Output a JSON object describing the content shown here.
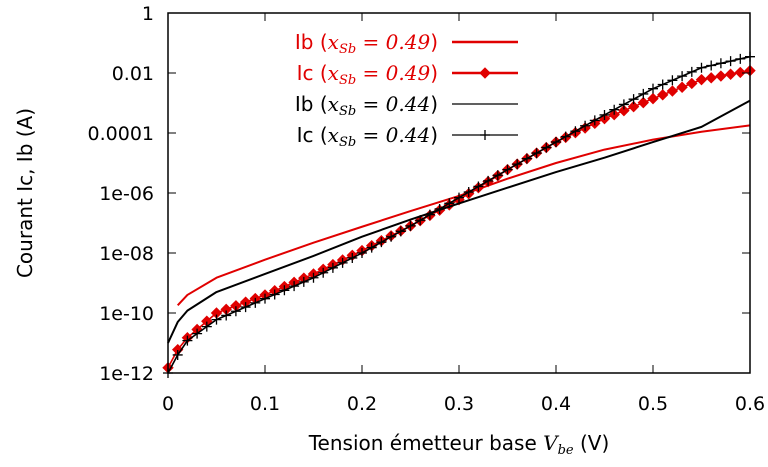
{
  "chart_data": {
    "type": "line",
    "title": "",
    "xlabel": {
      "text": "Tension émetteur base ",
      "var": "V",
      "sub": "be",
      "unit": " (V)"
    },
    "ylabel": "Courant Ic, Ib (A)",
    "xlim": [
      0,
      0.6
    ],
    "ylim": [
      1e-12,
      1
    ],
    "yscale": "log",
    "grid": false,
    "legend_position": "top-left-inside",
    "x_ticks": [
      0,
      0.1,
      0.2,
      0.3,
      0.4,
      0.5,
      0.6
    ],
    "x_tick_labels": [
      "0",
      "0.1",
      "0.2",
      "0.3",
      "0.4",
      "0.5",
      "0.6"
    ],
    "y_ticks": [
      1e-12,
      1e-10,
      1e-08,
      1e-06,
      0.0001,
      0.01,
      1
    ],
    "y_tick_labels": [
      "1e-12",
      "1e-10",
      "1e-08",
      "1e-06",
      "0.0001",
      "0.01",
      "1"
    ],
    "series": [
      {
        "name": "Ib",
        "param": "x",
        "param_sub": "Sb",
        "param_val": " = 0.49",
        "color": "#e00000",
        "marker": "none",
        "x": [
          0.01,
          0.02,
          0.05,
          0.1,
          0.15,
          0.2,
          0.25,
          0.3,
          0.35,
          0.4,
          0.45,
          0.5,
          0.55,
          0.6
        ],
        "y": [
          1.8e-10,
          4e-10,
          1.5e-09,
          6e-09,
          2.2e-08,
          7.5e-08,
          2.5e-07,
          8e-07,
          3e-06,
          1e-05,
          2.8e-05,
          6e-05,
          0.00011,
          0.00018
        ]
      },
      {
        "name": "Ic",
        "param": "x",
        "param_sub": "Sb",
        "param_val": " = 0.49",
        "color": "#e00000",
        "marker": "diamond",
        "x": [
          0.0,
          0.01,
          0.02,
          0.05,
          0.1,
          0.15,
          0.2,
          0.25,
          0.3,
          0.35,
          0.4,
          0.45,
          0.5,
          0.55,
          0.6
        ],
        "y": [
          1.5e-12,
          6e-12,
          1.5e-11,
          1e-10,
          4e-10,
          2e-09,
          1.2e-08,
          8e-08,
          6e-07,
          6e-06,
          5e-05,
          0.0003,
          0.0014,
          0.006,
          0.012
        ]
      },
      {
        "name": "Ib",
        "param": "x",
        "param_sub": "Sb",
        "param_val": " = 0.44",
        "color": "#000000",
        "marker": "none",
        "x": [
          0.0,
          0.01,
          0.02,
          0.05,
          0.1,
          0.15,
          0.2,
          0.25,
          0.3,
          0.35,
          0.4,
          0.45,
          0.5,
          0.55,
          0.6
        ],
        "y": [
          1e-11,
          5e-11,
          1.2e-10,
          5e-10,
          2e-09,
          8e-09,
          3.5e-08,
          1.3e-07,
          4.5e-07,
          1.5e-06,
          5e-06,
          1.5e-05,
          5e-05,
          0.00016,
          0.0012
        ]
      },
      {
        "name": "Ic",
        "param": "x",
        "param_sub": "Sb",
        "param_val": " = 0.44",
        "color": "#000000",
        "marker": "plus",
        "x": [
          0.0,
          0.01,
          0.02,
          0.05,
          0.1,
          0.15,
          0.2,
          0.25,
          0.3,
          0.35,
          0.4,
          0.45,
          0.5,
          0.55,
          0.6
        ],
        "y": [
          1e-12,
          4e-12,
          1.2e-11,
          6e-11,
          3e-10,
          1.5e-09,
          1e-08,
          8e-08,
          7e-07,
          6e-06,
          5e-05,
          0.0004,
          0.003,
          0.015,
          0.035
        ]
      }
    ]
  }
}
